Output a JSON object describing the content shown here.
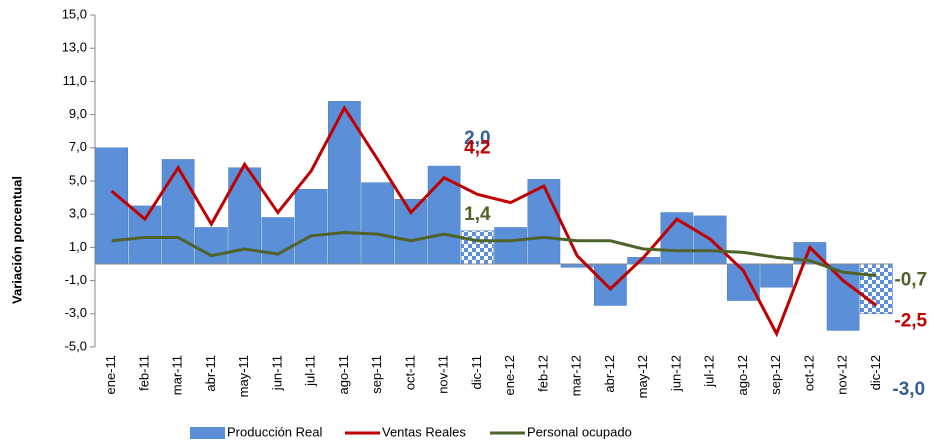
{
  "chart_data": {
    "type": "bar_line",
    "y_axis_label": "Variación porcentual",
    "categories": [
      "ene-11",
      "feb-11",
      "mar-11",
      "abr-11",
      "may-11",
      "jun-11",
      "jul-11",
      "ago-11",
      "sep-11",
      "oct-11",
      "nov-11",
      "dic-11",
      "ene-12",
      "feb-12",
      "mar-12",
      "abr-12",
      "may-12",
      "jun-12",
      "jul-12",
      "ago-12",
      "sep-12",
      "oct-12",
      "nov-12",
      "dic-12"
    ],
    "series": [
      {
        "name": "Producción Real",
        "type": "bar",
        "color": "#5b8fd8",
        "label_color": "#366092",
        "values": [
          7.0,
          3.5,
          6.3,
          2.2,
          5.8,
          2.8,
          4.5,
          9.8,
          4.9,
          3.9,
          5.9,
          2.0,
          2.2,
          5.1,
          -0.2,
          -2.5,
          0.4,
          3.1,
          2.9,
          -2.2,
          -1.4,
          1.3,
          -4.0,
          -3.0
        ],
        "value_labels": [
          null,
          null,
          null,
          null,
          null,
          null,
          null,
          null,
          null,
          null,
          null,
          "2,0",
          null,
          null,
          null,
          null,
          null,
          null,
          null,
          null,
          null,
          null,
          null,
          "-3,0"
        ]
      },
      {
        "name": "Ventas Reales",
        "type": "line",
        "color": "#c00000",
        "label_color": "#c00000",
        "values": [
          4.4,
          2.7,
          5.8,
          2.4,
          6.0,
          3.1,
          5.6,
          9.4,
          6.3,
          3.1,
          5.2,
          4.2,
          3.7,
          4.7,
          0.5,
          -1.5,
          0.4,
          2.7,
          1.5,
          -0.4,
          -4.2,
          1.0,
          -1.0,
          -2.5
        ],
        "value_labels": [
          null,
          null,
          null,
          null,
          null,
          null,
          null,
          null,
          null,
          null,
          null,
          "4,2",
          null,
          null,
          null,
          null,
          null,
          null,
          null,
          null,
          null,
          null,
          null,
          "-2,5"
        ]
      },
      {
        "name": "Personal ocupado",
        "type": "line",
        "color": "#4f6228",
        "label_color": "#4f6228",
        "values": [
          1.4,
          1.6,
          1.6,
          0.5,
          0.9,
          0.6,
          1.7,
          1.9,
          1.8,
          1.4,
          1.8,
          1.4,
          1.4,
          1.6,
          1.4,
          1.4,
          0.9,
          0.8,
          0.8,
          0.7,
          0.4,
          0.2,
          -0.5,
          -0.7
        ],
        "value_labels": [
          null,
          null,
          null,
          null,
          null,
          null,
          null,
          null,
          null,
          null,
          null,
          "1,4",
          null,
          null,
          null,
          null,
          null,
          null,
          null,
          null,
          null,
          null,
          null,
          "-0,7"
        ]
      }
    ],
    "ylim": [
      -5,
      15
    ],
    "yticks": [
      {
        "value": -5,
        "label": "-5,0"
      },
      {
        "value": -3,
        "label": "-3,0"
      },
      {
        "value": -1,
        "label": "-1,0"
      },
      {
        "value": 1,
        "label": "1,0"
      },
      {
        "value": 3,
        "label": "3,0"
      },
      {
        "value": 5,
        "label": "5,0"
      },
      {
        "value": 7,
        "label": "7,0"
      },
      {
        "value": 9,
        "label": "9,0"
      },
      {
        "value": 11,
        "label": "11,0"
      },
      {
        "value": 13,
        "label": "13,0"
      },
      {
        "value": 15,
        "label": "15,0"
      }
    ],
    "legend": "bottom"
  }
}
